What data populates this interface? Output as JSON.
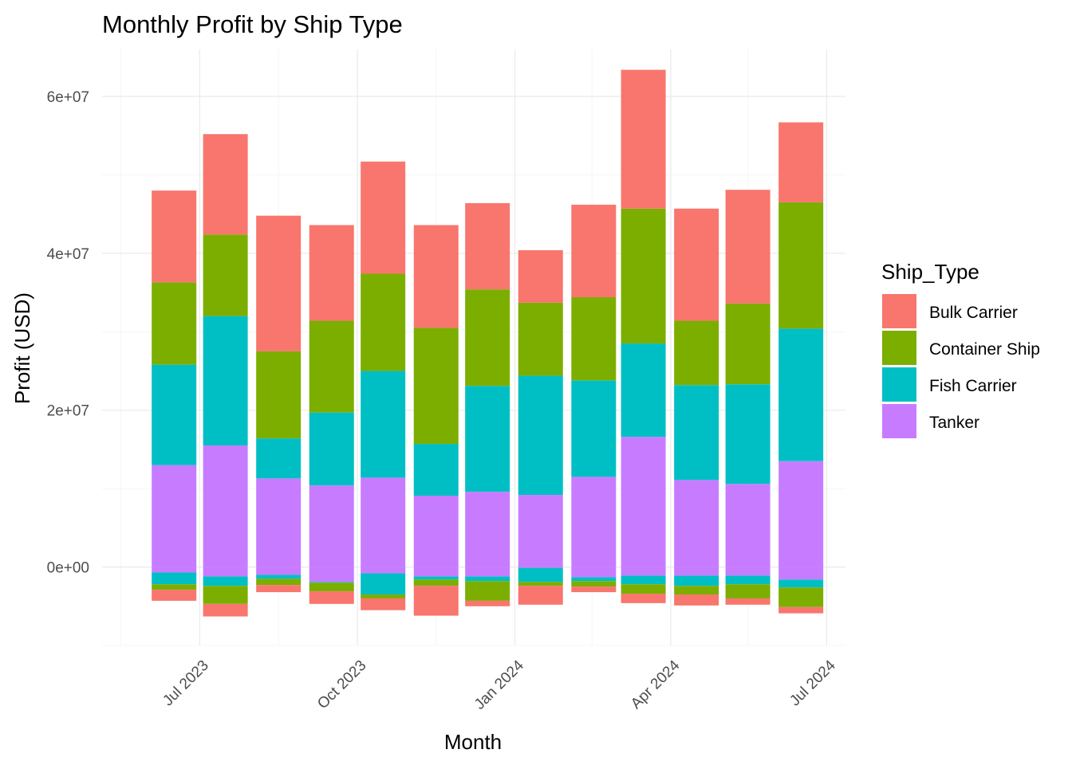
{
  "chart_data": {
    "type": "bar",
    "stacked": true,
    "title": "Monthly Profit by Ship Type",
    "xlabel": "Month",
    "ylabel": "Profit (USD)",
    "x_ticks": [
      "Jul 2023",
      "Oct 2023",
      "Jan 2024",
      "Apr 2024",
      "Jul 2024"
    ],
    "x_tick_dates": [
      "2023-07-01",
      "2023-10-01",
      "2024-01-01",
      "2024-04-01",
      "2024-07-01"
    ],
    "x_minor_dates": [
      "2023-05-16",
      "2023-08-16",
      "2023-11-16",
      "2024-02-15",
      "2024-05-16"
    ],
    "x_range": [
      "2023-05-05",
      "2024-07-12"
    ],
    "y_ticks": [
      0,
      20000000,
      40000000,
      60000000
    ],
    "y_tick_labels": [
      "0e+00",
      "2e+07",
      "4e+07",
      "6e+07"
    ],
    "ylim": [
      -10000000,
      66000000
    ],
    "grid": true,
    "legend": {
      "title": "Ship_Type",
      "position": "right"
    },
    "categories": [
      "2023-06-01",
      "2023-07-01",
      "2023-08-01",
      "2023-09-01",
      "2023-10-01",
      "2023-11-01",
      "2023-12-01",
      "2024-01-01",
      "2024-02-01",
      "2024-03-01",
      "2024-04-01",
      "2024-05-01",
      "2024-06-01"
    ],
    "stack_order": [
      "Tanker",
      "Fish Carrier",
      "Container Ship",
      "Bulk Carrier"
    ],
    "series": [
      {
        "name": "Bulk Carrier",
        "color": "#F8766D",
        "values": [
          11700000,
          12800000,
          17300000,
          12200000,
          14300000,
          13100000,
          11000000,
          6700000,
          11800000,
          17700000,
          14300000,
          14500000,
          10200000
        ],
        "negatives": [
          -1400000,
          -1600000,
          -900000,
          -1600000,
          -1500000,
          -3800000,
          -700000,
          -2400000,
          -700000,
          -1200000,
          -1400000,
          -800000,
          -800000
        ]
      },
      {
        "name": "Container Ship",
        "color": "#7CAE00",
        "values": [
          10500000,
          10400000,
          11100000,
          11700000,
          12400000,
          14800000,
          12300000,
          9300000,
          10600000,
          17200000,
          8200000,
          10300000,
          16100000
        ],
        "negatives": [
          -700000,
          -2300000,
          -800000,
          -1100000,
          -500000,
          -800000,
          -2500000,
          -500000,
          -700000,
          -1200000,
          -1100000,
          -1800000,
          -2500000
        ]
      },
      {
        "name": "Fish Carrier",
        "color": "#00BFC4",
        "values": [
          12800000,
          16500000,
          5100000,
          9300000,
          13600000,
          6600000,
          13500000,
          15200000,
          12300000,
          11900000,
          12100000,
          12700000,
          16900000
        ],
        "negatives": [
          -1500000,
          -1200000,
          -500000,
          -100000,
          -2700000,
          -400000,
          -600000,
          -1800000,
          -500000,
          -1100000,
          -1300000,
          -1100000,
          -1000000
        ]
      },
      {
        "name": "Tanker",
        "color": "#C77CFF",
        "values": [
          13000000,
          15500000,
          11300000,
          10400000,
          11400000,
          9100000,
          9600000,
          9200000,
          11500000,
          16600000,
          11100000,
          10600000,
          13500000
        ],
        "negatives": [
          -700000,
          -1200000,
          -1000000,
          -1900000,
          -800000,
          -1200000,
          -1200000,
          -100000,
          -1300000,
          -1100000,
          -1100000,
          -1100000,
          -1600000
        ]
      }
    ]
  }
}
